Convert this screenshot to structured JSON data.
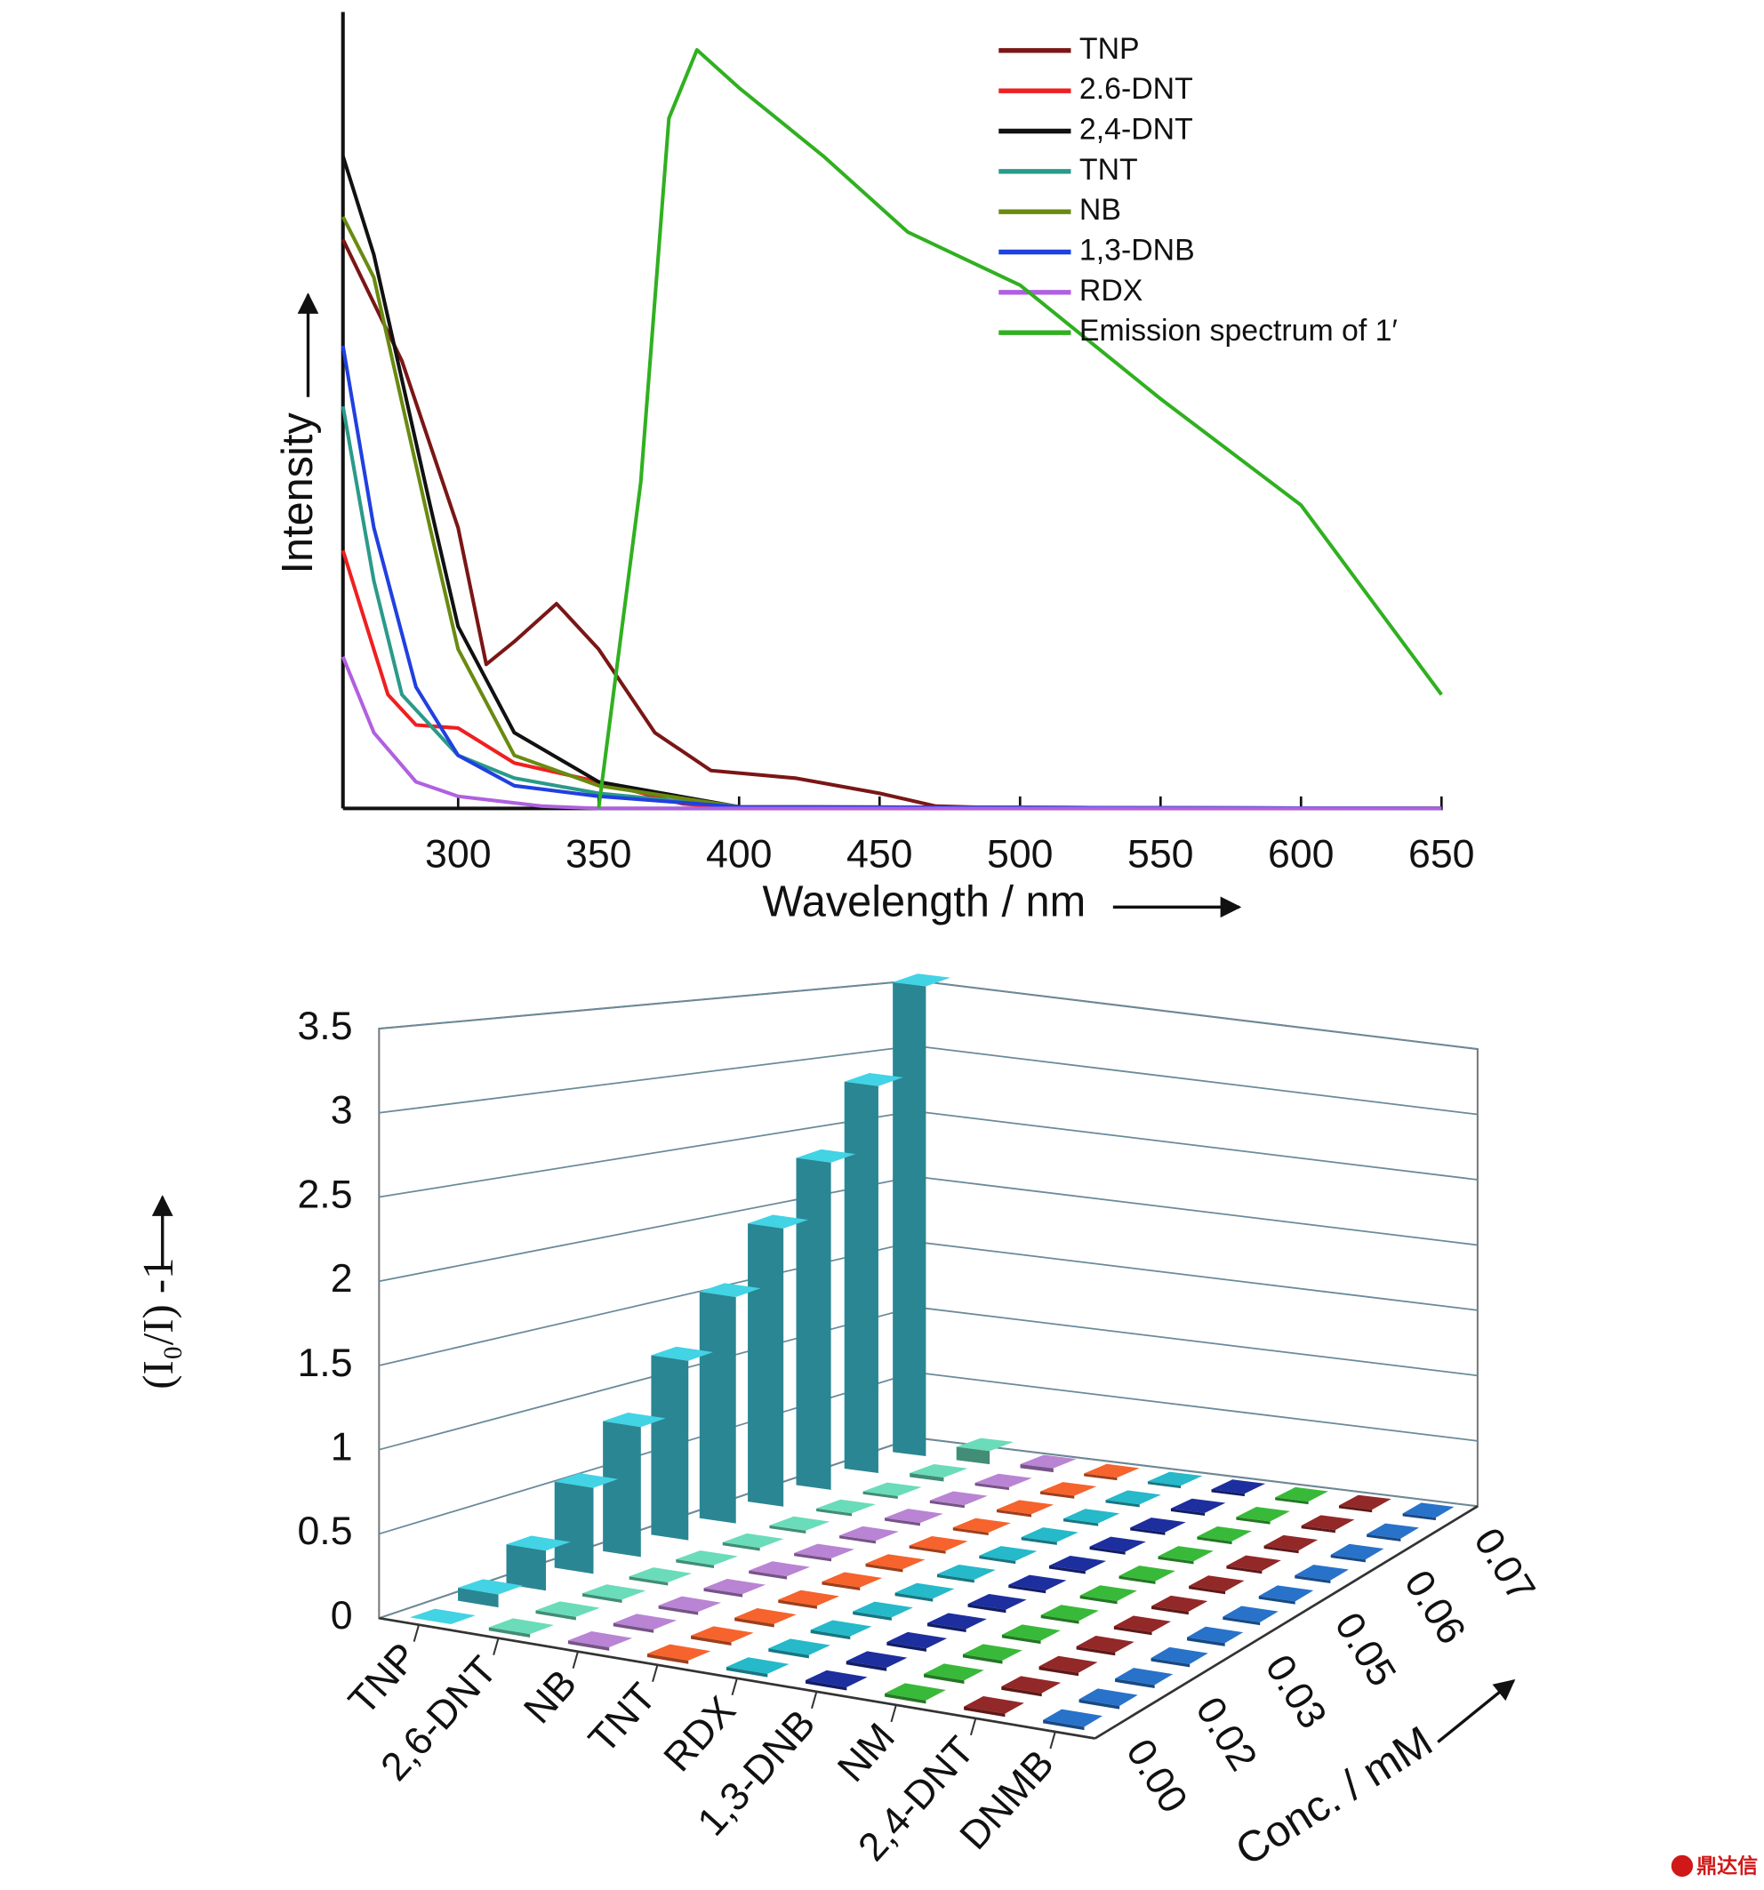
{
  "chart_data": [
    {
      "type": "line",
      "xlabel": "Wavelength / nm",
      "ylabel": "Intensity",
      "xlim": [
        259,
        650
      ],
      "ylim": [
        0,
        105
      ],
      "xticks": [
        300,
        350,
        400,
        450,
        500,
        550,
        600,
        650
      ],
      "series": [
        {
          "name": "TNP",
          "color": "#7a1616",
          "x": [
            259,
            280,
            300,
            310,
            320,
            335,
            350,
            370,
            390,
            420,
            450,
            470,
            500,
            650
          ],
          "values": [
            75,
            59,
            37,
            19,
            22,
            27,
            21,
            10,
            5,
            4,
            2,
            0.3,
            0,
            0
          ]
        },
        {
          "name": "2.6-DNT",
          "color": "#ee2020",
          "x": [
            259,
            275,
            285,
            300,
            320,
            350,
            380,
            400,
            650
          ],
          "values": [
            34,
            15,
            11,
            10.6,
            6,
            3.5,
            0.6,
            0,
            0
          ]
        },
        {
          "name": "2,4-DNT",
          "color": "#111111",
          "x": [
            259,
            270,
            290,
            300,
            320,
            350,
            400,
            650
          ],
          "values": [
            86,
            73,
            40,
            24,
            10,
            3.5,
            0.2,
            0
          ]
        },
        {
          "name": "TNT",
          "color": "#2a9a8a",
          "x": [
            259,
            270,
            280,
            300,
            320,
            350,
            400,
            650
          ],
          "values": [
            53,
            30,
            15,
            7,
            4,
            2,
            0.2,
            0
          ]
        },
        {
          "name": "NB",
          "color": "#6a8a10",
          "x": [
            259,
            270,
            290,
            300,
            320,
            350,
            400,
            650
          ],
          "values": [
            78,
            70,
            37,
            21,
            7,
            3,
            0.2,
            0
          ]
        },
        {
          "name": "1,3-DNB",
          "color": "#2040e0",
          "x": [
            259,
            270,
            285,
            300,
            320,
            350,
            400,
            650
          ],
          "values": [
            61,
            37,
            16,
            7,
            3,
            1.6,
            0.2,
            0
          ]
        },
        {
          "name": "RDX",
          "color": "#b060e0",
          "x": [
            259,
            270,
            285,
            300,
            330,
            350,
            650
          ],
          "values": [
            20,
            10,
            3.5,
            1.6,
            0.3,
            0,
            0
          ]
        },
        {
          "name": "Emission spectrum of 1′",
          "color": "#30b020",
          "x": [
            350,
            365,
            375,
            385,
            400,
            430,
            460,
            500,
            550,
            600,
            650
          ],
          "values": [
            0,
            43,
            91,
            100,
            95,
            86,
            76,
            69,
            54,
            40,
            15
          ]
        }
      ]
    },
    {
      "type": "bar3d",
      "ylabel": "(I₀/I) -1",
      "zlabel": "Conc. / mM",
      "ylim": [
        0,
        3.5
      ],
      "yticks": [
        0,
        0.5,
        1,
        1.5,
        2,
        2.5,
        3,
        3.5
      ],
      "categories": [
        "TNP",
        "2,6-DNT",
        "NB",
        "TNT",
        "RDX",
        "1,3-DNB",
        "NM",
        "2,4-DNT",
        "DNMB"
      ],
      "colors": [
        "#3cc0d0",
        "#60c8a8",
        "#a878c0",
        "#e05a28",
        "#22a8b8",
        "#1a2a90",
        "#34a834",
        "#862424",
        "#2468b8"
      ],
      "z_categories": [
        "0.00",
        null,
        "0.02",
        null,
        "0.03",
        null,
        "0.05",
        null,
        "0.06",
        null,
        "0.07"
      ],
      "values": [
        [
          0,
          0.08,
          0.25,
          0.55,
          0.85,
          1.2,
          1.55,
          1.95,
          2.35,
          2.85,
          3.55
        ],
        [
          0.02,
          0.02,
          0.02,
          0.02,
          0.02,
          0.02,
          0.02,
          0.02,
          0.02,
          0.03,
          0.1
        ],
        [
          0.02,
          0.02,
          0.02,
          0.02,
          0.02,
          0.02,
          0.02,
          0.02,
          0.02,
          0.02,
          0.03
        ],
        [
          0.02,
          0.02,
          0.02,
          0.02,
          0.02,
          0.02,
          0.02,
          0.02,
          0.02,
          0.02,
          0.02
        ],
        [
          0.02,
          0.02,
          0.02,
          0.02,
          0.02,
          0.02,
          0.02,
          0.02,
          0.02,
          0.02,
          0.02
        ],
        [
          0.02,
          0.02,
          0.02,
          0.02,
          0.02,
          0.02,
          0.02,
          0.02,
          0.02,
          0.02,
          0.02
        ],
        [
          0.02,
          0.02,
          0.02,
          0.02,
          0.02,
          0.02,
          0.02,
          0.02,
          0.02,
          0.02,
          0.02
        ],
        [
          0.02,
          0.02,
          0.02,
          0.02,
          0.02,
          0.02,
          0.02,
          0.02,
          0.02,
          0.02,
          0.02
        ],
        [
          0.02,
          0.02,
          0.02,
          0.02,
          0.02,
          0.02,
          0.02,
          0.02,
          0.02,
          0.02,
          0.02
        ]
      ]
    }
  ],
  "watermark": "鼎达信"
}
